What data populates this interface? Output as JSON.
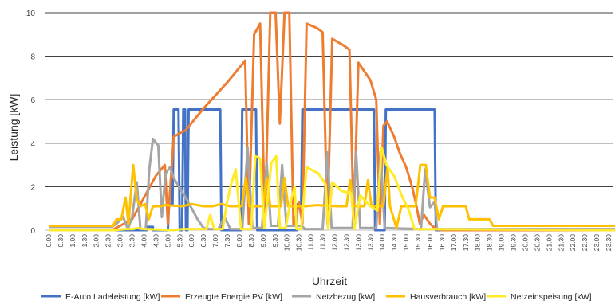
{
  "chart_data": {
    "type": "line",
    "xlabel": "Uhrzeit",
    "ylabel": "Leistung [kW]",
    "ylim": [
      0,
      10
    ],
    "yticks": [
      0,
      2,
      4,
      6,
      8,
      10
    ],
    "grid": true,
    "legend_position": "bottom",
    "x": [
      "0.00",
      "0.30",
      "1.00",
      "1.30",
      "2.00",
      "2.30",
      "3.00",
      "3.30",
      "4.00",
      "4.30",
      "5.00",
      "5.30",
      "6.00",
      "6.30",
      "7.00",
      "7.30",
      "8.00",
      "8.30",
      "9.00",
      "9.30",
      "10.00",
      "10.30",
      "11.00",
      "11.30",
      "12.00",
      "12.30",
      "13.00",
      "13.30",
      "14.00",
      "14.30",
      "15.00",
      "15.30",
      "16.00",
      "16.30",
      "17.00",
      "17.30",
      "18.00",
      "18.30",
      "19.00",
      "19.30",
      "20.00",
      "20.30",
      "21.00",
      "21.30",
      "22.00",
      "22.30",
      "23.00",
      "23.30"
    ],
    "series": [
      {
        "name": "E-Auto Ladeleistung [kW]",
        "color": "#4472C4",
        "points": [
          [
            0,
            0
          ],
          [
            16.5,
            0
          ],
          [
            16.5,
            0.15
          ],
          [
            17.5,
            0.15
          ],
          [
            17.5,
            0
          ],
          [
            20,
            0
          ],
          [
            20.2,
            1.2
          ],
          [
            20.8,
            1.2
          ],
          [
            21.0,
            5.55
          ],
          [
            21.8,
            5.55
          ],
          [
            22.0,
            0
          ],
          [
            22.4,
            0
          ],
          [
            22.6,
            5.55
          ],
          [
            22.9,
            5.55
          ],
          [
            23.05,
            0
          ],
          [
            23.3,
            0
          ],
          [
            23.5,
            5.55
          ],
          [
            28.8,
            5.55
          ],
          [
            29.0,
            0
          ],
          [
            32.3,
            0
          ],
          [
            32.5,
            5.55
          ],
          [
            34.8,
            5.55
          ],
          [
            35.0,
            0
          ],
          [
            41.6,
            0
          ],
          [
            41.8,
            1.2
          ],
          [
            42.4,
            1.2
          ],
          [
            42.6,
            5.55
          ],
          [
            54.6,
            5.55
          ],
          [
            54.8,
            0
          ],
          [
            56.4,
            0
          ],
          [
            56.6,
            5.55
          ],
          [
            64.8,
            5.55
          ],
          [
            65.0,
            0
          ],
          [
            95.5,
            0
          ]
        ]
      },
      {
        "name": "Erzeugte Energie PV [kW]",
        "color": "#ED7D31",
        "points": [
          [
            0,
            0
          ],
          [
            10.5,
            0
          ],
          [
            11,
            0.05
          ],
          [
            14,
            0.5
          ],
          [
            16,
            1.5
          ],
          [
            18,
            2.5
          ],
          [
            19.5,
            3.0
          ],
          [
            20,
            0.3
          ],
          [
            21,
            4.3
          ],
          [
            23,
            4.6
          ],
          [
            26,
            5.6
          ],
          [
            30,
            6.8
          ],
          [
            33,
            7.8
          ],
          [
            33.6,
            0.3
          ],
          [
            34.5,
            9.0
          ],
          [
            35.5,
            9.5
          ],
          [
            36.3,
            0.3
          ],
          [
            37.2,
            10.0
          ],
          [
            38.1,
            10.0
          ],
          [
            38.8,
            4.9
          ],
          [
            39.6,
            10.0
          ],
          [
            40.4,
            10.0
          ],
          [
            41.1,
            0.2
          ],
          [
            42.0,
            1.3
          ],
          [
            42.6,
            0.3
          ],
          [
            43.3,
            9.5
          ],
          [
            45,
            9.3
          ],
          [
            46,
            9.1
          ],
          [
            46.8,
            0.3
          ],
          [
            47.6,
            8.8
          ],
          [
            49.5,
            8.5
          ],
          [
            50.5,
            8.3
          ],
          [
            51.2,
            0.3
          ],
          [
            52.0,
            7.7
          ],
          [
            54,
            6.9
          ],
          [
            55,
            6.0
          ],
          [
            55.6,
            0.3
          ],
          [
            56.2,
            4.8
          ],
          [
            56.8,
            5.0
          ],
          [
            58,
            4.3
          ],
          [
            59,
            3.5
          ],
          [
            60,
            2.9
          ],
          [
            61,
            2.0
          ],
          [
            61.6,
            1.3
          ],
          [
            62.3,
            0.3
          ],
          [
            63.0,
            0.7
          ],
          [
            64,
            0.3
          ],
          [
            65,
            0.05
          ],
          [
            66,
            0
          ],
          [
            95.5,
            0
          ]
        ]
      },
      {
        "name": "Netzbezug [kW]",
        "color": "#A5A5A5",
        "points": [
          [
            0,
            0.15
          ],
          [
            10.6,
            0.15
          ],
          [
            11.4,
            0.3
          ],
          [
            12.5,
            0.6
          ],
          [
            13.3,
            0.05
          ],
          [
            14,
            0.6
          ],
          [
            14.8,
            2.2
          ],
          [
            15.4,
            0.05
          ],
          [
            16.3,
            0.05
          ],
          [
            16.9,
            2.8
          ],
          [
            17.5,
            4.2
          ],
          [
            18.4,
            3.9
          ],
          [
            19.0,
            0.6
          ],
          [
            19.6,
            2.6
          ],
          [
            20.4,
            2.9
          ],
          [
            21.0,
            2.4
          ],
          [
            23,
            1.5
          ],
          [
            25,
            0.5
          ],
          [
            26,
            0.1
          ],
          [
            27,
            0.05
          ],
          [
            28.5,
            0.05
          ],
          [
            29.5,
            0.6
          ],
          [
            30.5,
            0.05
          ],
          [
            32.5,
            0.05
          ],
          [
            33.4,
            3.8
          ],
          [
            34.2,
            0.1
          ],
          [
            35.8,
            0.1
          ],
          [
            36.6,
            3.1
          ],
          [
            37.3,
            0.2
          ],
          [
            38.5,
            0.2
          ],
          [
            39.2,
            3.0
          ],
          [
            39.9,
            0.2
          ],
          [
            41,
            0.2
          ],
          [
            42,
            0.2
          ],
          [
            42.5,
            0.2
          ],
          [
            43.0,
            0.05
          ],
          [
            46,
            0.05
          ],
          [
            46.8,
            3.6
          ],
          [
            47.5,
            0.1
          ],
          [
            51.0,
            0.1
          ],
          [
            51.6,
            3.6
          ],
          [
            52.3,
            0.1
          ],
          [
            55.0,
            0.1
          ],
          [
            55.7,
            3.6
          ],
          [
            56.4,
            0.1
          ],
          [
            62.5,
            0.05
          ],
          [
            63.2,
            2.8
          ],
          [
            64,
            1.05
          ],
          [
            64.8,
            1.3
          ],
          [
            65.2,
            0.05
          ],
          [
            95.5,
            0.05
          ]
        ]
      },
      {
        "name": "Hausverbrauch [kW]",
        "color": "#FFC000",
        "points": [
          [
            0,
            0.2
          ],
          [
            10.8,
            0.2
          ],
          [
            11.4,
            0.5
          ],
          [
            12.2,
            0.5
          ],
          [
            12.9,
            1.5
          ],
          [
            13.4,
            0.3
          ],
          [
            14.2,
            3.0
          ],
          [
            14.8,
            1.4
          ],
          [
            15.4,
            1.1
          ],
          [
            16.2,
            1.2
          ],
          [
            16.8,
            0.5
          ],
          [
            17.5,
            1.1
          ],
          [
            18.8,
            1.1
          ],
          [
            19.5,
            1.15
          ],
          [
            22.5,
            1.1
          ],
          [
            24,
            1.2
          ],
          [
            26,
            1.1
          ],
          [
            27.5,
            1.1
          ],
          [
            29,
            1.2
          ],
          [
            30.5,
            1.1
          ],
          [
            32.4,
            1.1
          ],
          [
            33.1,
            2.4
          ],
          [
            33.7,
            1.1
          ],
          [
            36,
            1.1
          ],
          [
            36.6,
            2.4
          ],
          [
            37.2,
            1.1
          ],
          [
            39,
            1.1
          ],
          [
            39.6,
            2.4
          ],
          [
            40.2,
            1.1
          ],
          [
            43,
            1.1
          ],
          [
            45,
            1.15
          ],
          [
            48.5,
            1.1
          ],
          [
            50,
            1.1
          ],
          [
            50.6,
            2.3
          ],
          [
            51.2,
            1.1
          ],
          [
            53.0,
            1.1
          ],
          [
            53.6,
            2.3
          ],
          [
            54.2,
            1.1
          ],
          [
            56.2,
            1.1
          ],
          [
            56.9,
            2.9
          ],
          [
            57.3,
            1.1
          ],
          [
            58.4,
            0.1
          ],
          [
            59.2,
            1.1
          ],
          [
            61,
            1.1
          ],
          [
            61.6,
            1.1
          ],
          [
            62.4,
            3.0
          ],
          [
            63.3,
            3.0
          ],
          [
            64.0,
            1.5
          ],
          [
            64.8,
            1.5
          ],
          [
            65.5,
            0.5
          ],
          [
            66.2,
            1.1
          ],
          [
            67,
            1.1
          ],
          [
            70,
            1.1
          ],
          [
            70.6,
            0.5
          ],
          [
            74,
            0.5
          ],
          [
            74.6,
            0.2
          ],
          [
            95.5,
            0.2
          ]
        ]
      },
      {
        "name": "Netzeinspeisung [kW]",
        "color": "#FFEB2A",
        "points": [
          [
            0,
            0
          ],
          [
            11,
            0
          ],
          [
            13,
            0.05
          ],
          [
            14.2,
            0.05
          ],
          [
            14.8,
            0.1
          ],
          [
            16,
            0.05
          ],
          [
            21,
            0
          ],
          [
            22.5,
            0.05
          ],
          [
            26.5,
            0.05
          ],
          [
            27.1,
            0.7
          ],
          [
            27.8,
            0.05
          ],
          [
            29.2,
            0.05
          ],
          [
            29.9,
            1.2
          ],
          [
            30.6,
            2.1
          ],
          [
            31.4,
            2.8
          ],
          [
            32.3,
            0.05
          ],
          [
            34,
            0.05
          ],
          [
            34.7,
            3.4
          ],
          [
            35.5,
            3.3
          ],
          [
            36.2,
            0.1
          ],
          [
            37.4,
            3.1
          ],
          [
            38.2,
            3.4
          ],
          [
            38.8,
            0.1
          ],
          [
            39.8,
            0.1
          ],
          [
            40.5,
            1.2
          ],
          [
            41.3,
            2.0
          ],
          [
            41.6,
            0.05
          ],
          [
            42.4,
            0.05
          ],
          [
            43.3,
            2.9
          ],
          [
            45.3,
            2.6
          ],
          [
            46.5,
            2.1
          ],
          [
            46.9,
            0.05
          ],
          [
            47.6,
            2.2
          ],
          [
            49.2,
            1.8
          ],
          [
            50.8,
            1.7
          ],
          [
            51.3,
            0.05
          ],
          [
            52.3,
            1.6
          ],
          [
            54,
            1.1
          ],
          [
            55.2,
            0.9
          ],
          [
            55.9,
            3.8
          ],
          [
            56.7,
            3.0
          ],
          [
            58,
            2.5
          ],
          [
            59.4,
            1.5
          ],
          [
            60.5,
            0.9
          ],
          [
            61.4,
            0.05
          ],
          [
            95.5,
            0
          ]
        ]
      }
    ]
  }
}
